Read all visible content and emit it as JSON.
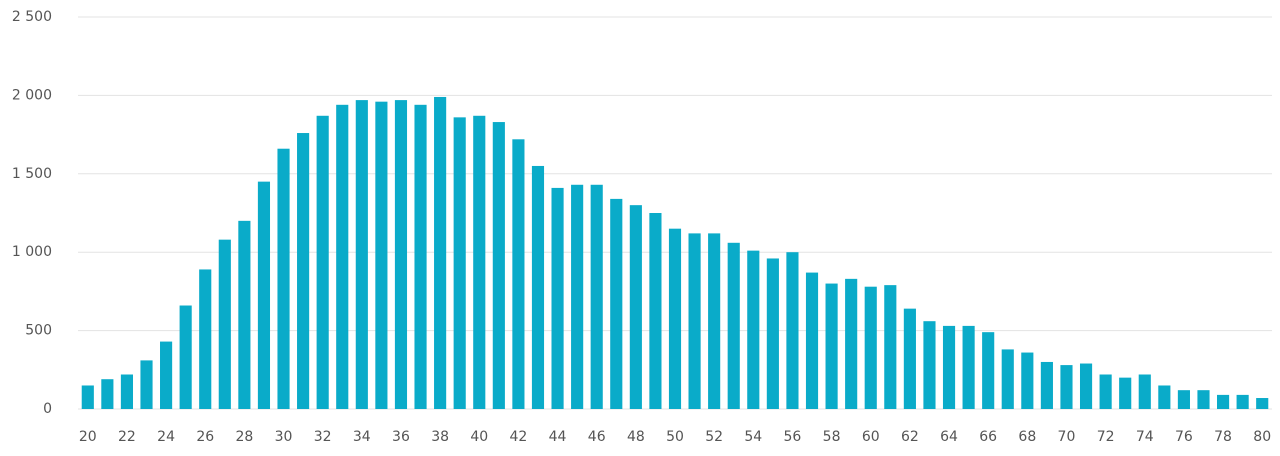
{
  "chart_data": {
    "type": "bar",
    "categories": [
      "20",
      null,
      "22",
      null,
      "24",
      null,
      "26",
      null,
      "28",
      null,
      "30",
      null,
      "32",
      null,
      "34",
      null,
      "36",
      null,
      "38",
      null,
      "40",
      null,
      "42",
      null,
      "44",
      null,
      "46",
      null,
      "48",
      null,
      "50",
      null,
      "52",
      null,
      "54",
      null,
      "56",
      null,
      "58",
      null,
      "60",
      null,
      "62",
      null,
      "64",
      null,
      "66",
      null,
      "68",
      null,
      "70",
      null,
      "72",
      null,
      "74",
      null,
      "76",
      null,
      "78",
      null,
      "80"
    ],
    "values": [
      150,
      190,
      220,
      310,
      430,
      660,
      890,
      1080,
      1200,
      1450,
      1660,
      1760,
      1870,
      1940,
      1970,
      1960,
      1970,
      1940,
      1990,
      1860,
      1870,
      1830,
      1720,
      1550,
      1410,
      1430,
      1430,
      1340,
      1300,
      1250,
      1150,
      1120,
      1120,
      1060,
      1010,
      960,
      1000,
      870,
      800,
      830,
      780,
      790,
      640,
      560,
      530,
      530,
      490,
      380,
      360,
      300,
      280,
      290,
      220,
      200,
      220,
      150,
      120,
      120,
      90,
      90,
      70
    ],
    "color": "#0aabc9",
    "ylim": [
      0,
      2500
    ],
    "yticks": [
      0,
      500,
      {
        "value": 1000,
        "label": "1 000"
      },
      {
        "value": 1500,
        "label": "1 500"
      },
      {
        "value": 2000,
        "label": "2 000"
      },
      {
        "value": 2500,
        "label": "2 500"
      }
    ],
    "grid": true
  }
}
